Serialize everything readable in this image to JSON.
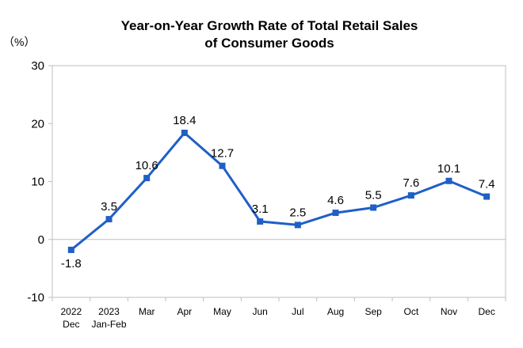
{
  "chart_data": {
    "type": "line",
    "title_lines": [
      "Year-on-Year Growth Rate of Total Retail Sales",
      "of Consumer Goods"
    ],
    "ylabel": "（%）",
    "ylim": [
      -10,
      30
    ],
    "yticks": [
      "30",
      "20",
      "10",
      "0",
      "-10"
    ],
    "ytick_values": [
      30,
      20,
      10,
      0,
      -10
    ],
    "categories": [
      [
        "2022",
        "Dec"
      ],
      [
        "2023",
        "Jan-Feb"
      ],
      [
        "Mar"
      ],
      [
        "Apr"
      ],
      [
        "May"
      ],
      [
        "Jun"
      ],
      [
        "Jul"
      ],
      [
        "Aug"
      ],
      [
        "Sep"
      ],
      [
        "Oct"
      ],
      [
        "Nov"
      ],
      [
        "Dec"
      ]
    ],
    "values": [
      -1.8,
      3.5,
      10.6,
      18.4,
      12.7,
      3.1,
      2.5,
      4.6,
      5.5,
      7.6,
      10.1,
      7.4
    ],
    "value_labels": [
      "-1.8",
      "3.5",
      "10.6",
      "18.4",
      "12.7",
      "3.1",
      "2.5",
      "4.6",
      "5.5",
      "7.6",
      "10.1",
      "7.4"
    ],
    "grid": false,
    "line_color": "#1f5fc6"
  }
}
